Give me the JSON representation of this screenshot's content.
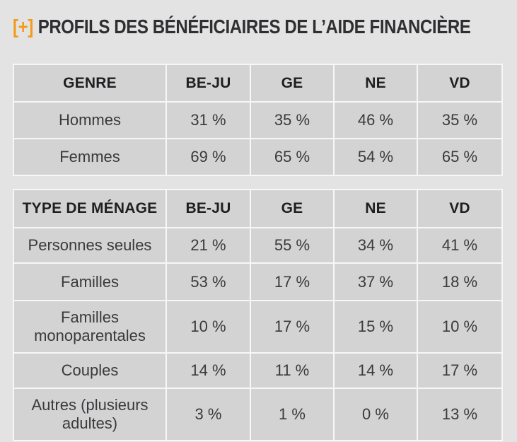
{
  "title": {
    "mark": "[+]",
    "text": "PROFILS DES BÉNÉFICIAIRES DE L’AIDE FINANCIÈRE"
  },
  "genre_table": {
    "headers": [
      "GENRE",
      "BE-JU",
      "GE",
      "NE",
      "VD"
    ],
    "rows": [
      {
        "label": "Hommes",
        "values": [
          "31 %",
          "35 %",
          "46 %",
          "35 %"
        ]
      },
      {
        "label": "Femmes",
        "values": [
          "69 %",
          "65 %",
          "54 %",
          "65 %"
        ]
      }
    ]
  },
  "menage_table": {
    "headers": [
      "TYPE DE MÉNAGE",
      "BE-JU",
      "GE",
      "NE",
      "VD"
    ],
    "rows": [
      {
        "label_lines": [
          "Personnes seules"
        ],
        "values": [
          "21 %",
          "55 %",
          "34 %",
          "41 %"
        ]
      },
      {
        "label_lines": [
          "Familles"
        ],
        "values": [
          "53 %",
          "17 %",
          "37 %",
          "18 %"
        ]
      },
      {
        "label_lines": [
          "Familles",
          "monoparentales"
        ],
        "values": [
          "10 %",
          "17 %",
          "15 %",
          "10 %"
        ]
      },
      {
        "label_lines": [
          "Couples"
        ],
        "values": [
          "14 %",
          "11 %",
          "14 %",
          "17 %"
        ]
      },
      {
        "label_lines": [
          "Autres (plusieurs",
          "adultes)"
        ],
        "values": [
          "3 %",
          "1 %",
          "0 %",
          "13 %"
        ]
      }
    ]
  },
  "colors": {
    "accent": "#f39a1e",
    "cell_background": "#d3d3d4",
    "page_background": "#e3e3e4",
    "grid_lines": "#f7f7f7"
  }
}
